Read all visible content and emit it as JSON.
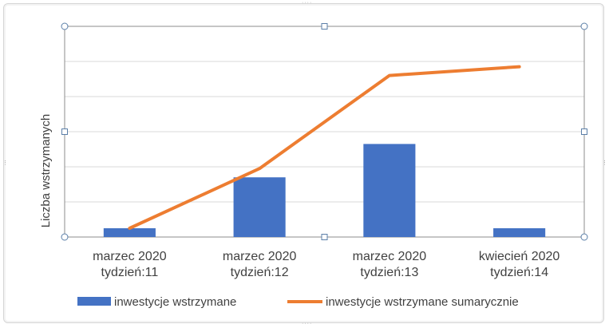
{
  "chart_data": {
    "type": "bar",
    "categories": [
      [
        "marzec 2020",
        "tydzień:11"
      ],
      [
        "marzec 2020",
        "tydzień:12"
      ],
      [
        "marzec 2020",
        "tydzień:13"
      ],
      [
        "kwiecień 2020",
        "tydzień:14"
      ]
    ],
    "ylabel": "Liczba wstrzymanych",
    "xlabel": "",
    "title": "",
    "ylim": [
      0,
      6
    ],
    "grid": true,
    "legend_position": "bottom",
    "series": [
      {
        "name": "inwestycje wstrzymane",
        "type": "bar",
        "color": "#4472C4",
        "values": [
          0.25,
          1.7,
          2.65,
          0.25
        ]
      },
      {
        "name": "inwestycje wstrzymane sumarycznie",
        "type": "line",
        "color": "#ED7D31",
        "values": [
          0.25,
          1.95,
          4.6,
          4.85
        ]
      }
    ]
  }
}
